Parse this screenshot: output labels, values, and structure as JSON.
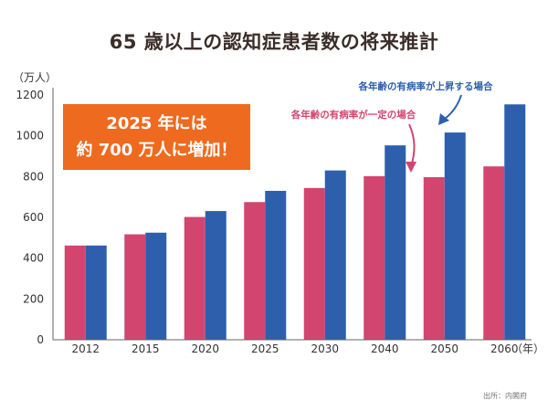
{
  "chart_data": {
    "type": "bar",
    "title": "65 歳以上の認知症患者数の将来推計",
    "ylabel": "（万人）",
    "xlabel": "（年）",
    "categories": [
      "2012",
      "2015",
      "2020",
      "2025",
      "2030",
      "2040",
      "2050",
      "2060"
    ],
    "ylim": [
      0,
      1200
    ],
    "yticks": [
      0,
      200,
      400,
      600,
      800,
      1000,
      1200
    ],
    "series": [
      {
        "values": [
          462,
          517,
          602,
          675,
          744,
          802,
          797,
          850
        ],
        "color": "#d2456f"
      },
      {
        "values": [
          462,
          525,
          631,
          730,
          830,
          953,
          1016,
          1154
        ],
        "color": "#2d5fad"
      }
    ],
    "grid": false,
    "callout": {
      "line1": "2025 年には",
      "line2": "約 700 万人に増加！",
      "color": "#ee6a1f"
    },
    "annotations": {
      "constant": "各年齢の有病率が一定の場合",
      "rising": "各年齢の有病率が上昇する場合"
    },
    "source": "出所：内閣府"
  }
}
